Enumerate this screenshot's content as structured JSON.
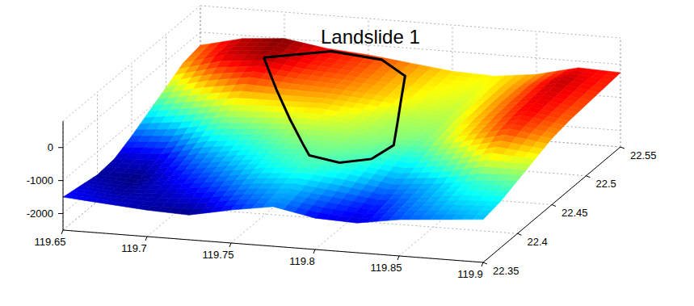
{
  "chart_data": {
    "type": "surface",
    "title": "Landslide 1",
    "x": [
      119.65,
      119.675,
      119.7,
      119.725,
      119.75,
      119.775,
      119.8,
      119.825,
      119.85,
      119.875,
      119.9
    ],
    "y": [
      22.35,
      22.375,
      22.4,
      22.425,
      22.45,
      22.475,
      22.5,
      22.525,
      22.55
    ],
    "z": [
      [
        -1500,
        -1600,
        -1700,
        -1750,
        -1500,
        -1300,
        -1550,
        -1600,
        -1400,
        -1300,
        -1200
      ],
      [
        -1600,
        -1700,
        -1650,
        -1500,
        -1300,
        -1200,
        -1350,
        -1500,
        -1300,
        -1150,
        -1100
      ],
      [
        -1700,
        -1750,
        -1500,
        -1300,
        -1100,
        -1000,
        -1100,
        -1300,
        -1200,
        -1000,
        -900
      ],
      [
        -1650,
        -1600,
        -1300,
        -1100,
        -950,
        -900,
        -950,
        -1100,
        -900,
        -600,
        -700
      ],
      [
        -1400,
        -1300,
        -1000,
        -900,
        -800,
        -800,
        -850,
        -900,
        -600,
        -300,
        -500
      ],
      [
        -1100,
        -900,
        -700,
        -650,
        -600,
        -700,
        -800,
        -800,
        -500,
        -200,
        -400
      ],
      [
        -800,
        -500,
        -300,
        -400,
        -450,
        -550,
        -700,
        -750,
        -450,
        -150,
        -350
      ],
      [
        -500,
        -150,
        -50,
        -250,
        -350,
        -500,
        -650,
        -700,
        -450,
        -100,
        -300
      ],
      [
        -400,
        -100,
        0,
        -200,
        -300,
        -450,
        -600,
        -650,
        -500,
        -200,
        -250
      ]
    ],
    "xlim": [
      119.65,
      119.9
    ],
    "xticks": [
      119.65,
      119.7,
      119.75,
      119.8,
      119.85,
      119.9
    ],
    "ylim": [
      22.35,
      22.55
    ],
    "yticks": [
      22.35,
      22.4,
      22.45,
      22.5,
      22.55
    ],
    "zlim": [
      -2500,
      800
    ],
    "zticks": [
      -2000,
      -1000,
      0
    ],
    "grid": true,
    "boundary": {
      "x": [
        119.7,
        119.73,
        119.76,
        119.78,
        119.79,
        119.8,
        119.81,
        119.805,
        119.79,
        119.77,
        119.76,
        119.74,
        119.72,
        119.7
      ],
      "y": [
        22.52,
        22.545,
        22.545,
        22.53,
        22.5,
        22.47,
        22.44,
        22.42,
        22.41,
        22.415,
        22.43,
        22.46,
        22.49,
        22.52
      ]
    }
  }
}
